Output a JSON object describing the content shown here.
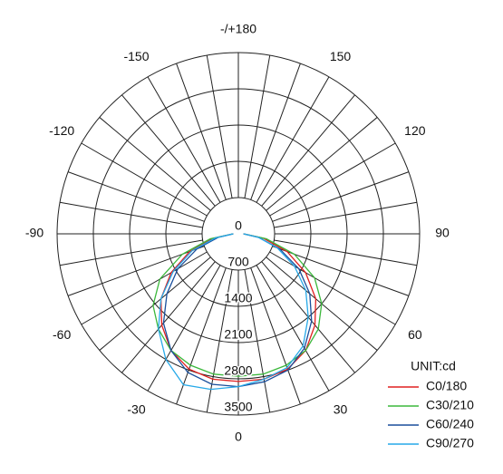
{
  "chart_data": {
    "type": "polar",
    "unit_label": "UNIT:cd",
    "rlim": [
      0,
      3500
    ],
    "rticks": [
      0,
      700,
      1400,
      2100,
      2800,
      3500
    ],
    "thetaticks": [
      0,
      30,
      60,
      90,
      120,
      150,
      {
        "value": 180,
        "label": "-/+180"
      },
      -150,
      -120,
      -90,
      -60,
      -30
    ],
    "theta_grid": [
      0,
      10,
      20,
      30,
      40,
      50,
      60,
      70,
      80,
      90,
      100,
      110,
      120,
      130,
      140,
      150,
      160,
      170,
      180,
      -170,
      -160,
      -150,
      -140,
      -130,
      -120,
      -110,
      -100,
      -90,
      -80,
      -70,
      -60,
      -50,
      -40,
      -30,
      -20,
      -10
    ],
    "x": [
      -90,
      -80,
      -70,
      -60,
      -50,
      -40,
      -30,
      -20,
      -10,
      0,
      10,
      20,
      30,
      40,
      50,
      60,
      70,
      80,
      90
    ],
    "series": [
      {
        "name": "C0/180",
        "color": "#e02020",
        "values": [
          100,
          500,
          1000,
          1500,
          1950,
          2300,
          2600,
          2780,
          2850,
          2850,
          2850,
          2780,
          2600,
          2300,
          1950,
          1500,
          1000,
          500,
          100
        ]
      },
      {
        "name": "C30/210",
        "color": "#3cb83c",
        "values": [
          100,
          550,
          1150,
          1750,
          2150,
          2400,
          2600,
          2700,
          2750,
          2750,
          2750,
          2700,
          2600,
          2400,
          2100,
          1700,
          1150,
          550,
          100
        ]
      },
      {
        "name": "C60/240",
        "color": "#1a4f9c",
        "values": [
          100,
          400,
          850,
          1350,
          1800,
          2250,
          2600,
          2850,
          2950,
          2950,
          2900,
          2800,
          2550,
          2200,
          1800,
          1350,
          850,
          400,
          100
        ]
      },
      {
        "name": "C90/270",
        "color": "#27a9e8",
        "values": [
          100,
          450,
          950,
          1450,
          1950,
          2400,
          2800,
          3100,
          3050,
          2950,
          2850,
          2750,
          2500,
          2100,
          1700,
          1250,
          800,
          400,
          100
        ]
      }
    ]
  }
}
